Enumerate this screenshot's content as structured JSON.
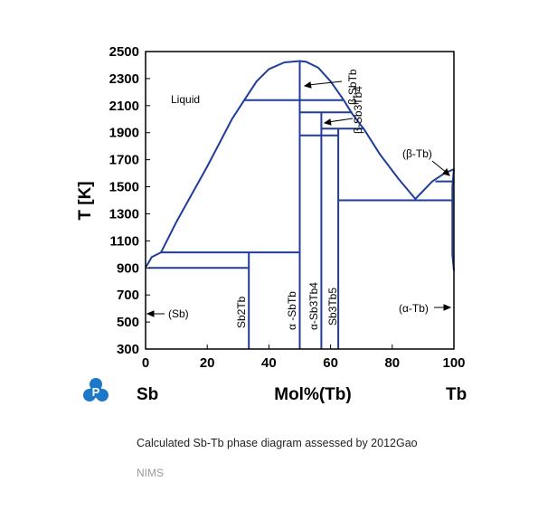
{
  "chart_data": {
    "type": "line",
    "title": "",
    "xlabel": "Mol%(Tb)",
    "ylabel": "T [K]",
    "xlim": [
      0,
      100
    ],
    "ylim": [
      300,
      2500
    ],
    "x_ticks": [
      "0",
      "20",
      "40",
      "60",
      "80",
      "100"
    ],
    "y_ticks": [
      "300",
      "500",
      "700",
      "900",
      "1100",
      "1300",
      "1500",
      "1700",
      "1900",
      "2100",
      "2300",
      "2500"
    ],
    "left_element": "Sb",
    "right_element": "Tb",
    "grid": false,
    "line_color": "#1f3d99",
    "series": [
      {
        "type": "liquidus",
        "points": [
          [
            0,
            904
          ],
          [
            1,
            940
          ],
          [
            2,
            980
          ],
          [
            5,
            1015
          ],
          [
            10,
            1240
          ],
          [
            20,
            1650
          ],
          [
            28,
            2000
          ],
          [
            32,
            2140
          ],
          [
            36,
            2280
          ],
          [
            40,
            2370
          ],
          [
            45,
            2420
          ],
          [
            50,
            2430
          ],
          [
            52,
            2425
          ],
          [
            56,
            2380
          ],
          [
            60,
            2280
          ],
          [
            64,
            2150
          ],
          [
            67,
            2040
          ],
          [
            71,
            1920
          ],
          [
            76,
            1740
          ],
          [
            82,
            1560
          ],
          [
            87.5,
            1410
          ],
          [
            93,
            1540
          ],
          [
            97,
            1600
          ],
          [
            100,
            1630
          ]
        ]
      },
      {
        "type": "liquidus",
        "points": [
          [
            100,
            1630
          ],
          [
            99.5,
            1500
          ],
          [
            99.5,
            1000
          ],
          [
            100,
            880
          ]
        ]
      },
      {
        "type": "line",
        "points": [
          [
            1,
            900
          ],
          [
            33.5,
            900
          ]
        ]
      },
      {
        "type": "line",
        "points": [
          [
            5,
            1015
          ],
          [
            50,
            1015
          ]
        ]
      },
      {
        "type": "line",
        "points": [
          [
            33.5,
            300
          ],
          [
            33.5,
            1015
          ]
        ]
      },
      {
        "type": "line",
        "points": [
          [
            50,
            300
          ],
          [
            50,
            2430
          ]
        ]
      },
      {
        "type": "line",
        "points": [
          [
            32,
            2140
          ],
          [
            64,
            2140
          ]
        ]
      },
      {
        "type": "line",
        "points": [
          [
            50,
            2050
          ],
          [
            67,
            2050
          ]
        ]
      },
      {
        "type": "line",
        "points": [
          [
            57,
            1930
          ],
          [
            71,
            1930
          ]
        ]
      },
      {
        "type": "line",
        "points": [
          [
            50,
            1880
          ],
          [
            62.5,
            1880
          ]
        ]
      },
      {
        "type": "line",
        "points": [
          [
            57,
            300
          ],
          [
            57,
            2050
          ]
        ]
      },
      {
        "type": "line",
        "points": [
          [
            62.5,
            300
          ],
          [
            62.5,
            1930
          ]
        ]
      },
      {
        "type": "line",
        "points": [
          [
            62.5,
            1400
          ],
          [
            99.5,
            1400
          ]
        ]
      },
      {
        "type": "line",
        "points": [
          [
            94,
            1540
          ],
          [
            100,
            1540
          ]
        ]
      }
    ],
    "annotations": {
      "liquid": "Liquid",
      "sb_solid": "(Sb)",
      "sb2tb": "Sb2Tb",
      "alpha_sbtb": "α -SbTb",
      "beta_sbtb": "β-SbTb",
      "alpha_sb3tb4": "α-Sb3Tb4",
      "beta_sb3tb4": "β-Sb3Tb4",
      "sb3tb5": "Sb3Tb5",
      "beta_tb": "(β-Tb)",
      "alpha_tb": "(α-Tb)"
    }
  },
  "caption": "Calculated Sb-Tb phase diagram assessed by 2012Gao",
  "source": "NIMS",
  "logo_icon": "pauling-file-logo-icon",
  "logo_color": "#1e78c8"
}
